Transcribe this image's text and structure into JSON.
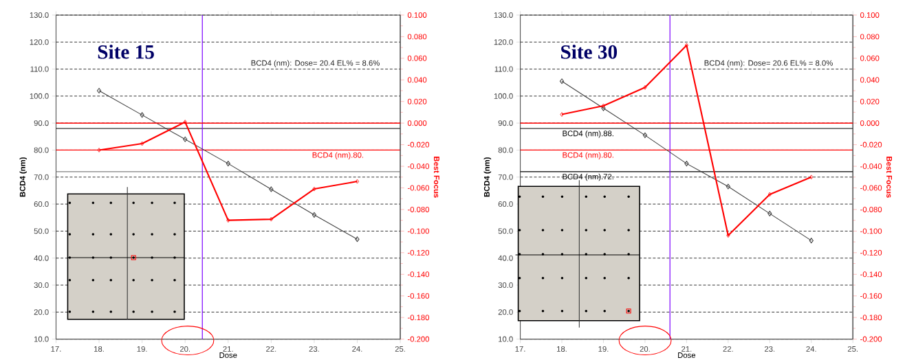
{
  "chart_data": [
    {
      "type": "line",
      "title": "Site 15",
      "xlabel": "Dose",
      "ylabel": "BCD4 (nm)",
      "y2label": "Best Focus",
      "marker": "diamond",
      "grid": "y",
      "x": [
        18,
        19,
        20,
        21,
        22,
        23,
        24
      ],
      "xlim": [
        17,
        25
      ],
      "xticks": [
        {
          "value": 17,
          "label": "17."
        },
        {
          "value": 18,
          "label": "18."
        },
        {
          "value": 19,
          "label": "19."
        },
        {
          "value": 20,
          "label": "20."
        },
        {
          "value": 21,
          "label": "21."
        },
        {
          "value": 22,
          "label": "22."
        },
        {
          "value": 23,
          "label": "23."
        },
        {
          "value": 24,
          "label": "24."
        },
        {
          "value": 25,
          "label": "25."
        }
      ],
      "ylim": [
        10,
        130
      ],
      "yticks": [
        {
          "value": 10,
          "label": "10.0"
        },
        {
          "value": 20,
          "label": "20.0"
        },
        {
          "value": 30,
          "label": "30.0"
        },
        {
          "value": 40,
          "label": "40.0"
        },
        {
          "value": 50,
          "label": "50.0"
        },
        {
          "value": 60,
          "label": "60.0"
        },
        {
          "value": 70,
          "label": "70.0"
        },
        {
          "value": 80,
          "label": "80.0"
        },
        {
          "value": 90,
          "label": "90.0"
        },
        {
          "value": 100,
          "label": "100.0"
        },
        {
          "value": 110,
          "label": "110.0"
        },
        {
          "value": 120,
          "label": "120.0"
        },
        {
          "value": 130,
          "label": "130.0"
        }
      ],
      "y2lim": [
        -0.2,
        0.1
      ],
      "y2ticks": [
        {
          "value": -0.2,
          "label": "-0.200"
        },
        {
          "value": -0.18,
          "label": "-0.180"
        },
        {
          "value": -0.16,
          "label": "-0.160"
        },
        {
          "value": -0.14,
          "label": "-0.140"
        },
        {
          "value": -0.12,
          "label": "-0.120"
        },
        {
          "value": -0.1,
          "label": "-0.100"
        },
        {
          "value": -0.08,
          "label": "-0.080"
        },
        {
          "value": -0.06,
          "label": "-0.060"
        },
        {
          "value": -0.04,
          "label": "-0.040"
        },
        {
          "value": -0.02,
          "label": "-0.020"
        },
        {
          "value": 0,
          "label": "0.000"
        },
        {
          "value": 0.02,
          "label": "0.020"
        },
        {
          "value": 0.04,
          "label": "0.040"
        },
        {
          "value": 0.06,
          "label": "0.060"
        },
        {
          "value": 0.08,
          "label": "0.080"
        },
        {
          "value": 0.1,
          "label": "0.100"
        }
      ],
      "series": [
        {
          "color": "#404040",
          "values": [
            102,
            93,
            84,
            75,
            65.5,
            56,
            47
          ]
        },
        {
          "color": "#ff0000",
          "axis": "y2",
          "values": [
            -0.025,
            -0.019,
            0.001,
            -0.09,
            -0.089,
            -0.061,
            -0.054
          ]
        }
      ],
      "ref_lines": [
        {
          "axis": "y",
          "value": 88,
          "color": "#000000"
        },
        {
          "axis": "y",
          "value": 80,
          "color": "#ff0000",
          "label": "BCD4 (nm).80."
        },
        {
          "axis": "y",
          "value": 72,
          "color": "#808080"
        },
        {
          "axis": "y2",
          "value": 0,
          "color": "#ff0000"
        },
        {
          "axis": "x",
          "value": 20.4,
          "color": "#7b00ff"
        }
      ],
      "annotations": [
        "BCD4 (nm): Dose= 20.4 EL% = 8.6%"
      ]
    },
    {
      "type": "line",
      "title": "Site 30",
      "xlabel": "Dose",
      "ylabel": "BCD4 (nm)",
      "y2label": "Best Focus",
      "marker": "diamond",
      "grid": "y",
      "x": [
        18,
        19,
        20,
        21,
        22,
        23,
        24
      ],
      "xlim": [
        17,
        25
      ],
      "xticks": [
        {
          "value": 17,
          "label": "17."
        },
        {
          "value": 18,
          "label": "18."
        },
        {
          "value": 19,
          "label": "19."
        },
        {
          "value": 20,
          "label": "20."
        },
        {
          "value": 21,
          "label": "21."
        },
        {
          "value": 22,
          "label": "22."
        },
        {
          "value": 23,
          "label": "23."
        },
        {
          "value": 24,
          "label": "24."
        },
        {
          "value": 25,
          "label": "25."
        }
      ],
      "ylim": [
        10,
        130
      ],
      "yticks": [
        {
          "value": 10,
          "label": "10.0"
        },
        {
          "value": 20,
          "label": "20.0"
        },
        {
          "value": 30,
          "label": "30.0"
        },
        {
          "value": 40,
          "label": "40.0"
        },
        {
          "value": 50,
          "label": "50.0"
        },
        {
          "value": 60,
          "label": "60.0"
        },
        {
          "value": 70,
          "label": "70.0"
        },
        {
          "value": 80,
          "label": "80.0"
        },
        {
          "value": 90,
          "label": "90.0"
        },
        {
          "value": 100,
          "label": "100.0"
        },
        {
          "value": 110,
          "label": "110.0"
        },
        {
          "value": 120,
          "label": "120.0"
        },
        {
          "value": 130,
          "label": "130.0"
        }
      ],
      "y2lim": [
        -0.2,
        0.1
      ],
      "y2ticks": [
        {
          "value": -0.2,
          "label": "-0.200"
        },
        {
          "value": -0.18,
          "label": "-0.180"
        },
        {
          "value": -0.16,
          "label": "-0.160"
        },
        {
          "value": -0.14,
          "label": "-0.140"
        },
        {
          "value": -0.12,
          "label": "-0.120"
        },
        {
          "value": -0.1,
          "label": "-0.100"
        },
        {
          "value": -0.08,
          "label": "-0.080"
        },
        {
          "value": -0.06,
          "label": "-0.060"
        },
        {
          "value": -0.04,
          "label": "-0.040"
        },
        {
          "value": -0.02,
          "label": "-0.020"
        },
        {
          "value": 0,
          "label": "0.000"
        },
        {
          "value": 0.02,
          "label": "0.020"
        },
        {
          "value": 0.04,
          "label": "0.040"
        },
        {
          "value": 0.06,
          "label": "0.060"
        },
        {
          "value": 0.08,
          "label": "0.080"
        },
        {
          "value": 0.1,
          "label": "0.100"
        }
      ],
      "series": [
        {
          "color": "#404040",
          "values": [
            105.5,
            95.5,
            85.5,
            75,
            66.5,
            56.5,
            46.5
          ]
        },
        {
          "color": "#ff0000",
          "axis": "y2",
          "values": [
            0.008,
            0.016,
            0.033,
            0.072,
            -0.104,
            -0.066,
            -0.05
          ]
        }
      ],
      "ref_lines": [
        {
          "axis": "y",
          "value": 88,
          "color": "#000000",
          "label": "BCD4 (nm).88."
        },
        {
          "axis": "y",
          "value": 80,
          "color": "#ff0000",
          "label": "BCD4 (nm).80."
        },
        {
          "axis": "y",
          "value": 72,
          "color": "#000000",
          "label": "BCD4 (nm).72."
        },
        {
          "axis": "y2",
          "value": 0,
          "color": "#ff0000"
        },
        {
          "axis": "x",
          "value": 20.6,
          "color": "#7b00ff"
        }
      ],
      "annotations": [
        "BCD4 (nm): Dose= 20.6 EL% = 8.0%"
      ]
    }
  ]
}
